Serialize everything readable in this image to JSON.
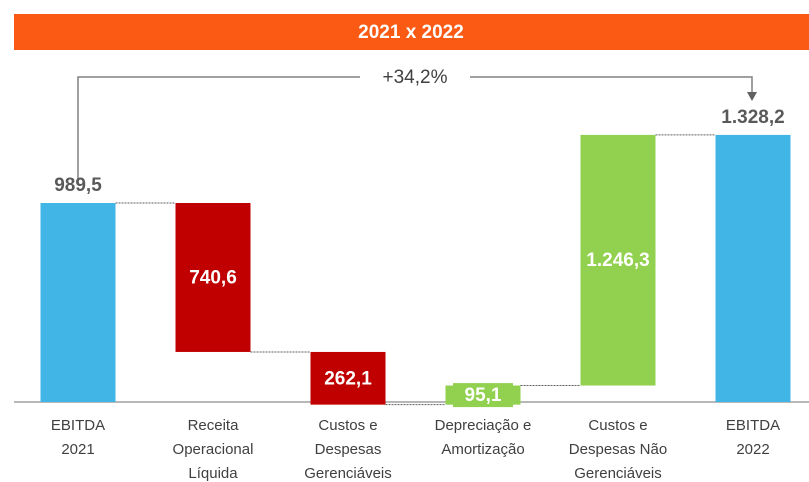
{
  "chart_data": {
    "type": "waterfall",
    "title": "2021 x 2022",
    "annotation": "+34,2%",
    "categories": [
      [
        "EBITDA",
        "2021"
      ],
      [
        "Receita",
        "Operacional",
        "Líquida"
      ],
      [
        "Custos e",
        "Despesas",
        "Gerenciáveis"
      ],
      [
        "Depreciação e",
        "Amortização"
      ],
      [
        "Custos e",
        "Despesas Não",
        "Gerenciáveis"
      ],
      [
        "EBITDA",
        "2022"
      ]
    ],
    "values": [
      989.5,
      740.6,
      262.1,
      95.1,
      1246.3,
      1328.2
    ],
    "value_labels": [
      "989,5",
      "740,6",
      "262,1",
      "95,1",
      "1.246,3",
      "1.328,2"
    ],
    "kinds": [
      "total",
      "decrease",
      "decrease",
      "increase",
      "increase",
      "total"
    ],
    "colors": {
      "total": "#41b6e6",
      "decrease": "#c00000",
      "increase": "#92d050"
    },
    "title_color": "#fa5a14"
  }
}
